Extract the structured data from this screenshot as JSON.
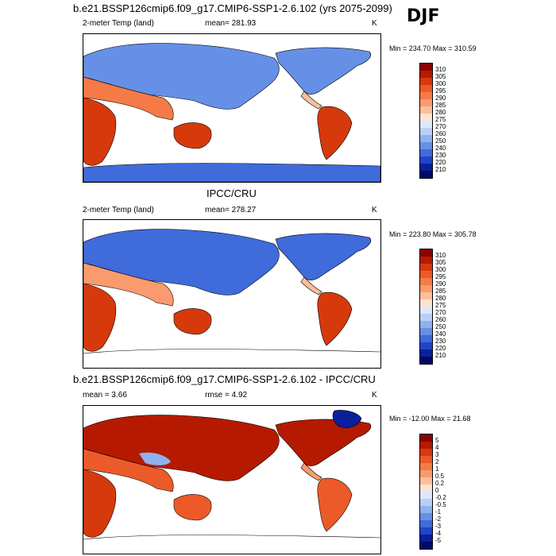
{
  "header": {
    "title": "b.e21.BSSP126cmip6.f09_g17.CMIP6-SSP1-2.6.102 (yrs 2075-2099)",
    "season": "DJF"
  },
  "panel1": {
    "left_label": "2-meter Temp (land)",
    "mean_label": "mean= 281.93",
    "unit": "K",
    "minmax": "Min = 234.70 Max = 310.59",
    "colorbar": [
      "310",
      "305",
      "300",
      "295",
      "290",
      "285",
      "280",
      "275",
      "270",
      "260",
      "250",
      "240",
      "230",
      "220",
      "210"
    ]
  },
  "panel2": {
    "title": "IPCC/CRU",
    "left_label": "2-meter Temp (land)",
    "mean_label": "mean= 278.27",
    "unit": "K",
    "minmax": "Min = 223.80 Max = 305.78",
    "colorbar": [
      "310",
      "305",
      "300",
      "295",
      "290",
      "285",
      "280",
      "275",
      "270",
      "260",
      "250",
      "240",
      "230",
      "220",
      "210"
    ]
  },
  "panel3": {
    "title": "b.e21.BSSP126cmip6.f09_g17.CMIP6-SSP1-2.6.102 - IPCC/CRU",
    "mean_label": "mean =   3.66",
    "rmse_label": "rmse =   4.92",
    "unit": "K",
    "minmax": "Min = -12.00 Max =  21.68",
    "colorbar": [
      "5",
      "4",
      "3",
      "2",
      "1",
      "0.5",
      "0.2",
      "0",
      "-0.2",
      "-0.5",
      "-1",
      "-2",
      "-3",
      "-4",
      "-5"
    ]
  },
  "colors": {
    "temp_scale": [
      "#8b0000",
      "#b51a00",
      "#d63a0c",
      "#ec5a2a",
      "#f57a48",
      "#f99b6e",
      "#fcbf9b",
      "#fde4d2",
      "#dce8fb",
      "#b9d0f6",
      "#8fb2ef",
      "#6690e6",
      "#3f6bdb",
      "#2244c8",
      "#0a1f9a",
      "#00096b"
    ],
    "diff_scale": [
      "#8b0000",
      "#b51a00",
      "#d63a0c",
      "#ec5a2a",
      "#f57a48",
      "#f99b6e",
      "#fcbf9b",
      "#fde4d2",
      "#dce8fb",
      "#b9d0f6",
      "#8fb2ef",
      "#6690e6",
      "#3f6bdb",
      "#2244c8",
      "#0a1f9a",
      "#00096b"
    ]
  }
}
